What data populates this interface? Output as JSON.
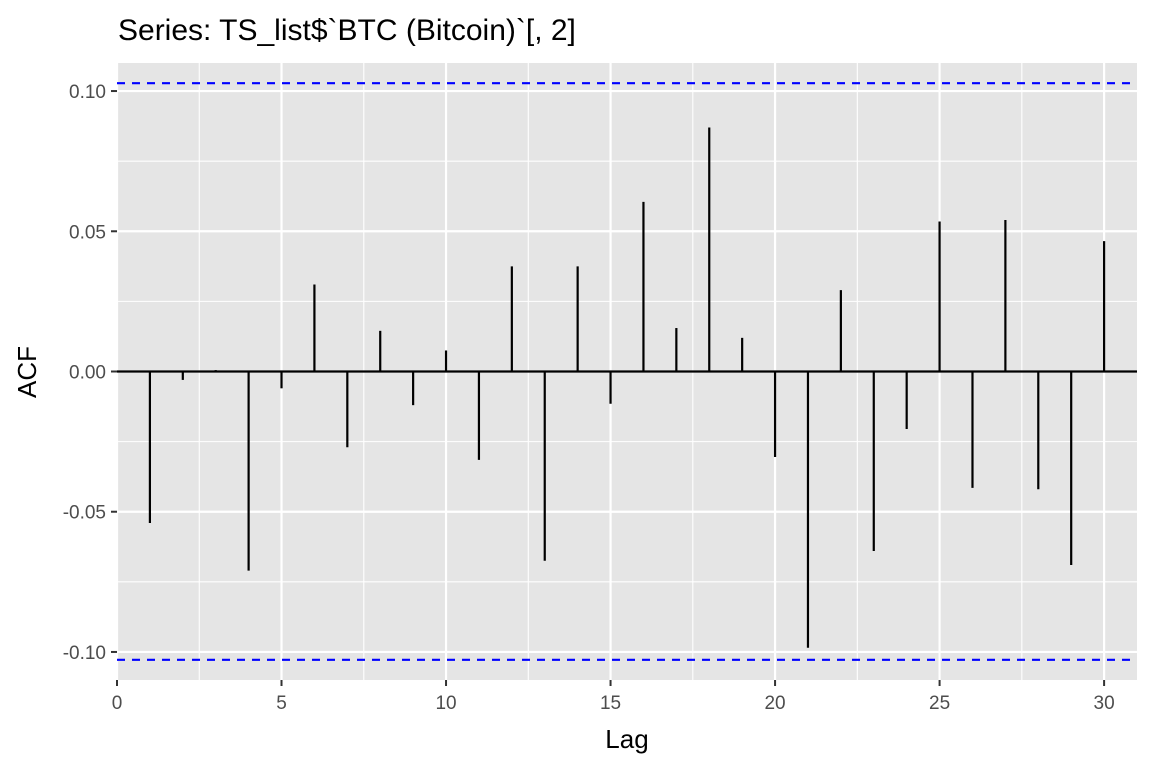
{
  "chart_data": {
    "type": "bar",
    "title": "Series: TS_list$`BTC (Bitcoin)`[, 2]",
    "xlabel": "Lag",
    "ylabel": "ACF",
    "xlim": [
      0,
      31
    ],
    "ylim": [
      -0.11,
      0.11
    ],
    "x_ticks": [
      0,
      5,
      10,
      15,
      20,
      25,
      30
    ],
    "x_tick_labels": [
      "0",
      "5",
      "10",
      "15",
      "20",
      "25",
      "30"
    ],
    "y_ticks": [
      -0.1,
      -0.05,
      0.0,
      0.05,
      0.1
    ],
    "y_tick_labels": [
      "-0.10",
      "-0.05",
      "0.00",
      "0.05",
      "0.10"
    ],
    "confidence_bounds": [
      0.1028,
      -0.1028
    ],
    "lags": [
      1,
      2,
      3,
      4,
      5,
      6,
      7,
      8,
      9,
      10,
      11,
      12,
      13,
      14,
      15,
      16,
      17,
      18,
      19,
      20,
      21,
      22,
      23,
      24,
      25,
      26,
      27,
      28,
      29,
      30
    ],
    "values": [
      -0.054,
      -0.003,
      0.0005,
      -0.071,
      -0.006,
      0.031,
      -0.027,
      0.0145,
      -0.012,
      0.0075,
      -0.0315,
      0.0375,
      -0.0675,
      0.0375,
      -0.0115,
      0.0605,
      0.0155,
      0.087,
      0.012,
      -0.0305,
      -0.0985,
      0.029,
      -0.064,
      -0.0205,
      0.0535,
      -0.0415,
      0.054,
      -0.042,
      -0.069,
      0.0465
    ],
    "grid": true,
    "panel_background": "#e5e5e5",
    "grid_color": "#ffffff",
    "bar_color": "#000000",
    "bound_color": "#0000ff"
  }
}
